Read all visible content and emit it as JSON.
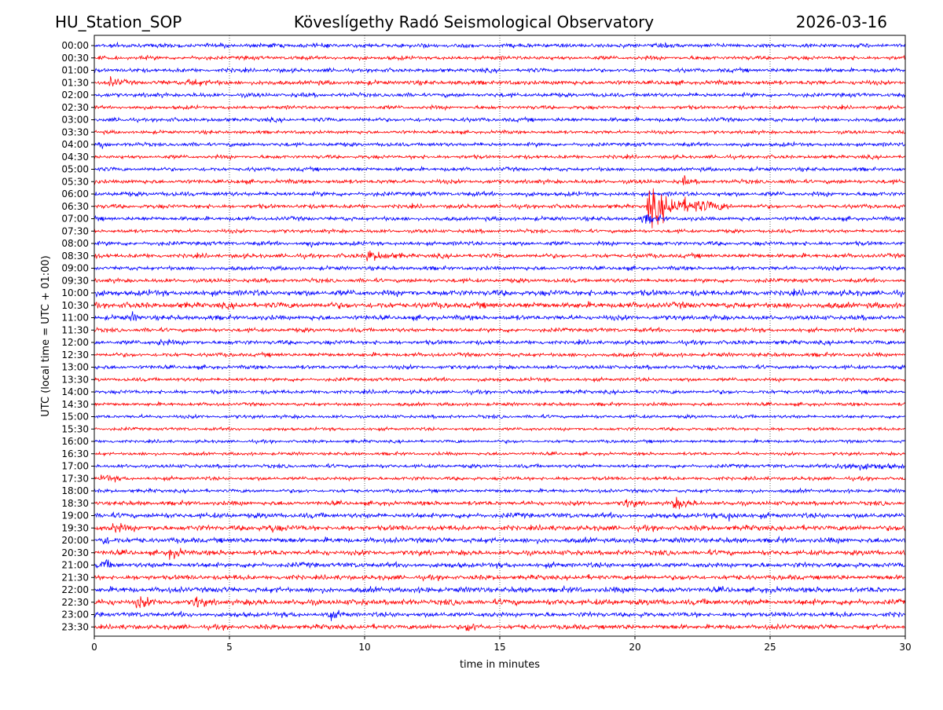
{
  "header": {
    "station": "HU_Station_SOP",
    "observatory": "Köveslígethy Radó Seismological Observatory",
    "date": "2026-03-16"
  },
  "chart_data": {
    "type": "line",
    "title": "Köveslígethy Radó Seismological Observatory",
    "xlabel": "time in minutes",
    "ylabel": "UTC (local time = UTC + 01:00)",
    "xlim": [
      0,
      30
    ],
    "x_ticks": [
      "0",
      "5",
      "10",
      "15",
      "20",
      "25",
      "30"
    ],
    "x_tick_values": [
      0,
      5,
      10,
      15,
      20,
      25,
      30
    ],
    "vertical_grid": true,
    "series_colors": [
      "#0000ff",
      "#ff0000"
    ],
    "traces": [
      {
        "label": "00:00",
        "color": "#0000ff",
        "noise": 0.35,
        "events": []
      },
      {
        "label": "00:30",
        "color": "#ff0000",
        "noise": 0.32,
        "events": []
      },
      {
        "label": "01:00",
        "color": "#0000ff",
        "noise": 0.33,
        "events": []
      },
      {
        "label": "01:30",
        "color": "#ff0000",
        "noise": 0.36,
        "events": [
          {
            "t": 3.5,
            "amp": 0.9,
            "dur": 0.4
          },
          {
            "t": 0.6,
            "amp": 0.7,
            "dur": 0.3
          }
        ]
      },
      {
        "label": "02:00",
        "color": "#0000ff",
        "noise": 0.34,
        "events": []
      },
      {
        "label": "02:30",
        "color": "#ff0000",
        "noise": 0.3,
        "events": []
      },
      {
        "label": "03:00",
        "color": "#0000ff",
        "noise": 0.33,
        "events": []
      },
      {
        "label": "03:30",
        "color": "#ff0000",
        "noise": 0.28,
        "events": []
      },
      {
        "label": "04:00",
        "color": "#0000ff",
        "noise": 0.32,
        "events": [
          {
            "t": 0.3,
            "amp": 0.6,
            "dur": 0.2
          }
        ]
      },
      {
        "label": "04:30",
        "color": "#ff0000",
        "noise": 0.3,
        "events": []
      },
      {
        "label": "05:00",
        "color": "#0000ff",
        "noise": 0.32,
        "events": []
      },
      {
        "label": "05:30",
        "color": "#ff0000",
        "noise": 0.34,
        "events": [
          {
            "t": 21.8,
            "amp": 1.1,
            "dur": 0.1
          }
        ]
      },
      {
        "label": "06:00",
        "color": "#0000ff",
        "noise": 0.36,
        "events": []
      },
      {
        "label": "06:30",
        "color": "#ff0000",
        "noise": 0.34,
        "events": [
          {
            "t": 20.5,
            "amp": 3.2,
            "dur": 1.4
          }
        ]
      },
      {
        "label": "07:00",
        "color": "#0000ff",
        "noise": 0.34,
        "events": [
          {
            "t": 20.3,
            "amp": 0.8,
            "dur": 0.5
          }
        ]
      },
      {
        "label": "07:30",
        "color": "#ff0000",
        "noise": 0.3,
        "events": []
      },
      {
        "label": "08:00",
        "color": "#0000ff",
        "noise": 0.34,
        "events": [
          {
            "t": 7.9,
            "amp": 1.0,
            "dur": 0.1
          }
        ]
      },
      {
        "label": "08:30",
        "color": "#ff0000",
        "noise": 0.36,
        "events": [
          {
            "t": 10.1,
            "amp": 1.0,
            "dur": 0.6
          }
        ]
      },
      {
        "label": "09:00",
        "color": "#0000ff",
        "noise": 0.33,
        "events": []
      },
      {
        "label": "09:30",
        "color": "#ff0000",
        "noise": 0.34,
        "events": []
      },
      {
        "label": "10:00",
        "color": "#0000ff",
        "noise": 0.48,
        "events": []
      },
      {
        "label": "10:30",
        "color": "#ff0000",
        "noise": 0.5,
        "events": []
      },
      {
        "label": "11:00",
        "color": "#0000ff",
        "noise": 0.4,
        "events": [
          {
            "t": 1.4,
            "amp": 0.8,
            "dur": 0.2
          }
        ]
      },
      {
        "label": "11:30",
        "color": "#ff0000",
        "noise": 0.34,
        "events": []
      },
      {
        "label": "12:00",
        "color": "#0000ff",
        "noise": 0.35,
        "events": [
          {
            "t": 2.4,
            "amp": 0.7,
            "dur": 0.3
          }
        ]
      },
      {
        "label": "12:30",
        "color": "#ff0000",
        "noise": 0.33,
        "events": []
      },
      {
        "label": "13:00",
        "color": "#0000ff",
        "noise": 0.32,
        "events": []
      },
      {
        "label": "13:30",
        "color": "#ff0000",
        "noise": 0.3,
        "events": []
      },
      {
        "label": "14:00",
        "color": "#0000ff",
        "noise": 0.32,
        "events": []
      },
      {
        "label": "14:30",
        "color": "#ff0000",
        "noise": 0.28,
        "events": []
      },
      {
        "label": "15:00",
        "color": "#0000ff",
        "noise": 0.28,
        "events": []
      },
      {
        "label": "15:30",
        "color": "#ff0000",
        "noise": 0.26,
        "events": []
      },
      {
        "label": "16:00",
        "color": "#0000ff",
        "noise": 0.26,
        "events": []
      },
      {
        "label": "16:30",
        "color": "#ff0000",
        "noise": 0.26,
        "events": []
      },
      {
        "label": "17:00",
        "color": "#0000ff",
        "noise": 0.3,
        "events": [
          {
            "t": 27.5,
            "amp": 0.7,
            "dur": 1.5
          }
        ]
      },
      {
        "label": "17:30",
        "color": "#ff0000",
        "noise": 0.3,
        "events": [
          {
            "t": 0.3,
            "amp": 0.6,
            "dur": 0.4
          }
        ]
      },
      {
        "label": "18:00",
        "color": "#0000ff",
        "noise": 0.3,
        "events": []
      },
      {
        "label": "18:30",
        "color": "#ff0000",
        "noise": 0.36,
        "events": [
          {
            "t": 21.4,
            "amp": 1.0,
            "dur": 0.5
          },
          {
            "t": 19.6,
            "amp": 0.8,
            "dur": 0.3
          }
        ]
      },
      {
        "label": "19:00",
        "color": "#0000ff",
        "noise": 0.42,
        "events": [
          {
            "t": 23.4,
            "amp": 0.8,
            "dur": 0.4
          }
        ]
      },
      {
        "label": "19:30",
        "color": "#ff0000",
        "noise": 0.44,
        "events": [
          {
            "t": 0.7,
            "amp": 0.9,
            "dur": 0.4
          },
          {
            "t": 6.5,
            "amp": 0.8,
            "dur": 0.3
          }
        ]
      },
      {
        "label": "20:00",
        "color": "#0000ff",
        "noise": 0.44,
        "events": [
          {
            "t": 0.3,
            "amp": 1.0,
            "dur": 0.3
          }
        ]
      },
      {
        "label": "20:30",
        "color": "#ff0000",
        "noise": 0.42,
        "events": [
          {
            "t": 2.8,
            "amp": 0.8,
            "dur": 0.4
          }
        ]
      },
      {
        "label": "21:00",
        "color": "#0000ff",
        "noise": 0.42,
        "events": [
          {
            "t": 0.3,
            "amp": 0.8,
            "dur": 0.3
          }
        ]
      },
      {
        "label": "21:30",
        "color": "#ff0000",
        "noise": 0.4,
        "events": []
      },
      {
        "label": "22:00",
        "color": "#0000ff",
        "noise": 0.46,
        "events": []
      },
      {
        "label": "22:30",
        "color": "#ff0000",
        "noise": 0.48,
        "events": [
          {
            "t": 1.6,
            "amp": 1.1,
            "dur": 0.3
          },
          {
            "t": 3.7,
            "amp": 1.3,
            "dur": 0.2
          }
        ]
      },
      {
        "label": "23:00",
        "color": "#0000ff",
        "noise": 0.4,
        "events": [
          {
            "t": 8.6,
            "amp": 0.8,
            "dur": 0.3
          }
        ]
      },
      {
        "label": "23:30",
        "color": "#ff0000",
        "noise": 0.4,
        "events": [
          {
            "t": 13.8,
            "amp": 0.8,
            "dur": 0.3
          }
        ]
      }
    ]
  }
}
